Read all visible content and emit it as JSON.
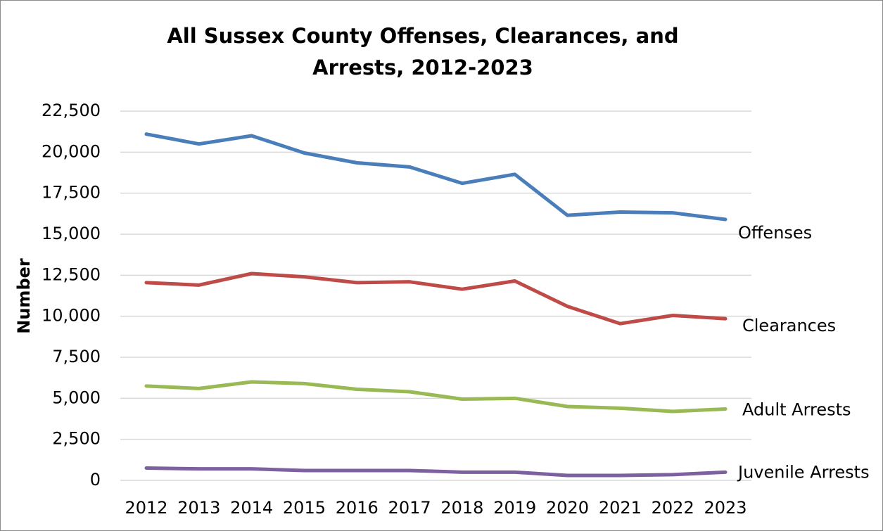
{
  "chart_data": {
    "type": "line",
    "title": "All Sussex County Offenses, Clearances, and Arrests, 2012-2023",
    "y_label": "Number",
    "categories": [
      "2012",
      "2013",
      "2014",
      "2015",
      "2016",
      "2017",
      "2018",
      "2019",
      "2020",
      "2021",
      "2022",
      "2023"
    ],
    "series": [
      {
        "name": "Offenses",
        "color": "#4a7ebb",
        "values": [
          21100,
          20500,
          21000,
          19950,
          19350,
          19100,
          18100,
          18650,
          16150,
          16350,
          16300,
          15900
        ]
      },
      {
        "name": "Clearances",
        "color": "#be4b48",
        "values": [
          12050,
          11900,
          12600,
          12400,
          12050,
          12100,
          11650,
          12150,
          10600,
          9550,
          10050,
          9850
        ]
      },
      {
        "name": "Adult Arrests",
        "color": "#98b954",
        "values": [
          5750,
          5600,
          6000,
          5900,
          5550,
          5400,
          4950,
          5000,
          4500,
          4400,
          4200,
          4350
        ]
      },
      {
        "name": "Juvenile Arrests",
        "color": "#7d60a0",
        "values": [
          750,
          700,
          700,
          600,
          600,
          600,
          500,
          500,
          300,
          300,
          350,
          500
        ]
      }
    ],
    "ylim": [
      0,
      22500
    ],
    "yticks": [
      0,
      {
        "value": 2500,
        "label": "2,500"
      },
      {
        "value": 5000,
        "label": "5,000"
      },
      {
        "value": 7500,
        "label": "7,500"
      },
      {
        "value": 10000,
        "label": "10,000"
      },
      {
        "value": 12500,
        "label": "12,500"
      },
      {
        "value": 15000,
        "label": "15,000"
      },
      {
        "value": 17500,
        "label": "17,500"
      },
      {
        "value": 20000,
        "label": "20,000"
      },
      {
        "value": 22500,
        "label": "22,500"
      }
    ],
    "grid": true
  }
}
